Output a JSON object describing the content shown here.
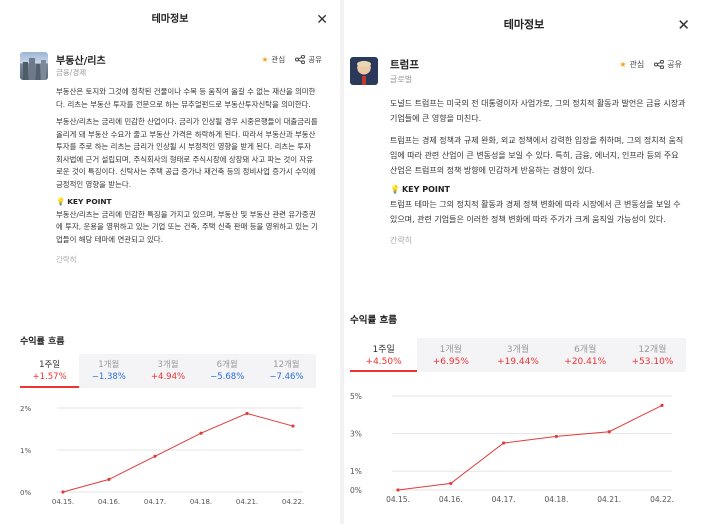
{
  "left": {
    "header_title": "테마정보",
    "close_glyph": "✕",
    "theme_name": "부동산/리츠",
    "theme_category": "금융/경제",
    "interest_label": "관심",
    "share_label": "공유",
    "description": "부동산은 토지와 그것에 정착된 건물이나 수목 등 움직여 옮길 수 없는 재산을 의미한다. 리츠는 부동산 투자를 전문으로 하는 뮤추얼펀드로 부동산투자신탁을 의미한다.",
    "detail": "부동산/리츠는 금리에 민감한 산업이다. 금리가 인상될 경우 시중은행들이 대출금리를 올리게 돼 부동산 수요가 줄고 부동산 가격은 하락하게 된다. 따라서 부동산과 부동산투자를 주로 하는 리츠는 금리가 인상될 시 부정적인 영향을 받게 된다. 리츠는 투자 회사법에 근거 설립되며, 주식회사의 형태로 주식시장에 상장돼 사고 파는 것이 자유로운 것이 특징이다. 신탁사는 주택 공급 증가나 재건축 등의 정비사업 증가시 수익에 긍정적인 영향을 받는다.",
    "key_point_title": "KEY POINT",
    "key_point": "부동산/리츠는 금리에 민감한 특징을 가지고 있으며, 부동산 및 부동산 관련 유가증권에 투자, 운용을 영위하고 있는 기업 또는 건축, 주택 신축 판매 등을 영위하고 있는 기업들이 해당 테마에 연관되고 있다.",
    "brief_label": "간략히",
    "section_title": "수익률 흐름",
    "tabs": [
      {
        "label": "1주일",
        "value": "+1.57%",
        "dir": "up"
      },
      {
        "label": "1개월",
        "value": "−1.38%",
        "dir": "down"
      },
      {
        "label": "3개월",
        "value": "+4.94%",
        "dir": "up"
      },
      {
        "label": "6개월",
        "value": "−5.68%",
        "dir": "down"
      },
      {
        "label": "12개월",
        "value": "−7.46%",
        "dir": "down"
      }
    ]
  },
  "right": {
    "header_title": "테마정보",
    "close_glyph": "✕",
    "theme_name": "트럼프",
    "theme_category": "글로벌",
    "interest_label": "관심",
    "share_label": "공유",
    "description": "도널드 트럼프는 미국의 전 대통령이자 사업가로, 그의 정치적 활동과 발언은 금융 시장과 기업들에 큰 영향을 미친다.",
    "detail": "트럼프는 경제 정책과 규제 완화, 외교 정책에서 강력한 입장을 취하며, 그의 정치적 움직임에 따라 관련 산업이 큰 변동성을 보일 수 있다. 특히, 금융, 에너지, 인프라 등의 주요 산업은 트럼프의 정책 방향에 민감하게 반응하는 경향이 있다.",
    "key_point_title": "KEY POINT",
    "key_point": "트럼프 테마는 그의 정치적 활동과 경제 정책 변화에 따라 시장에서 큰 변동성을 보일 수 있으며, 관련 기업들은 이러한 정책 변화에 따라 주가가 크게 움직일 가능성이 있다.",
    "brief_label": "간략히",
    "section_title": "수익률 흐름",
    "tabs": [
      {
        "label": "1주일",
        "value": "+4.50%",
        "dir": "up"
      },
      {
        "label": "1개월",
        "value": "+6.95%",
        "dir": "up"
      },
      {
        "label": "3개월",
        "value": "+19.44%",
        "dir": "up"
      },
      {
        "label": "6개월",
        "value": "+20.41%",
        "dir": "up"
      },
      {
        "label": "12개월",
        "value": "+53.10%",
        "dir": "up"
      }
    ]
  },
  "chart_data": [
    {
      "type": "line",
      "x": [
        "04.15.",
        "04.16.",
        "04.17.",
        "04.18.",
        "04.21.",
        "04.22."
      ],
      "y": [
        0.0,
        0.3,
        0.85,
        1.4,
        1.87,
        1.57
      ],
      "y_ticks": [
        "0%",
        "1%",
        "2%"
      ],
      "ylim": [
        0,
        2
      ],
      "grid": true,
      "color": "#e33b3b"
    },
    {
      "type": "line",
      "x": [
        "04.15.",
        "04.16.",
        "04.17.",
        "04.18.",
        "04.21.",
        "04.22."
      ],
      "y": [
        0.0,
        0.35,
        2.5,
        2.85,
        3.1,
        4.5
      ],
      "y_ticks": [
        "0%",
        "1%",
        "3%",
        "5%"
      ],
      "ylim": [
        0,
        5
      ],
      "grid": true,
      "color": "#e33b3b"
    }
  ]
}
